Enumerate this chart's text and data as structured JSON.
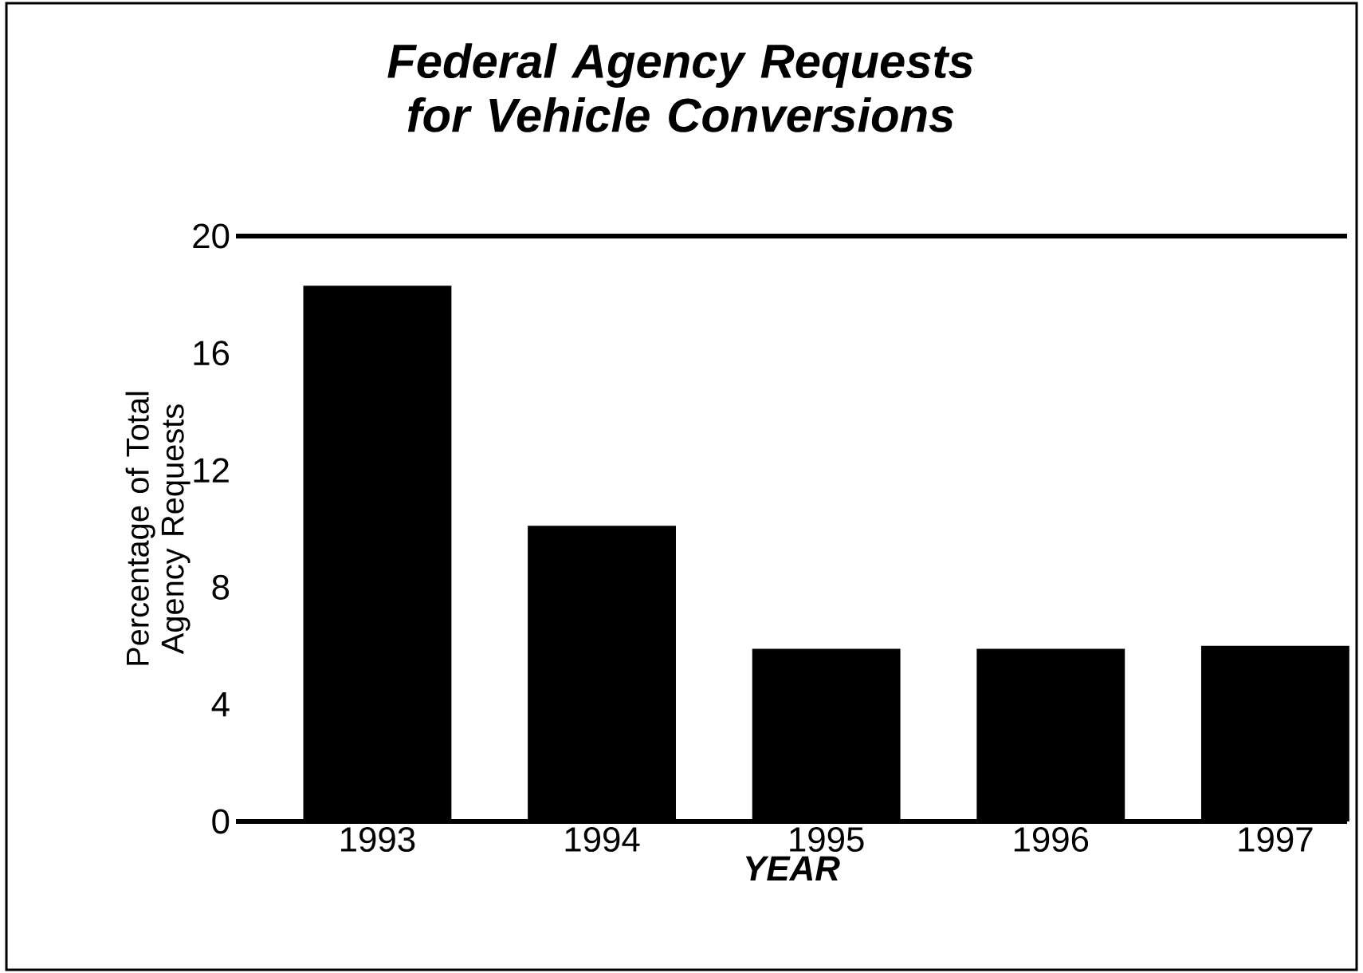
{
  "chart_data": {
    "type": "bar",
    "title": "Federal Agency Requests for Vehicle Conversions",
    "xlabel": "YEAR",
    "ylabel": "Percentage of Total Agency Requests",
    "categories": [
      "1993",
      "1994",
      "1995",
      "1996",
      "1997"
    ],
    "values": [
      18.3,
      10.1,
      5.9,
      5.9,
      6.0
    ],
    "color": "#000000",
    "ylim": [
      0,
      20
    ],
    "yticks": [
      0,
      4,
      8,
      12,
      16,
      20
    ]
  }
}
